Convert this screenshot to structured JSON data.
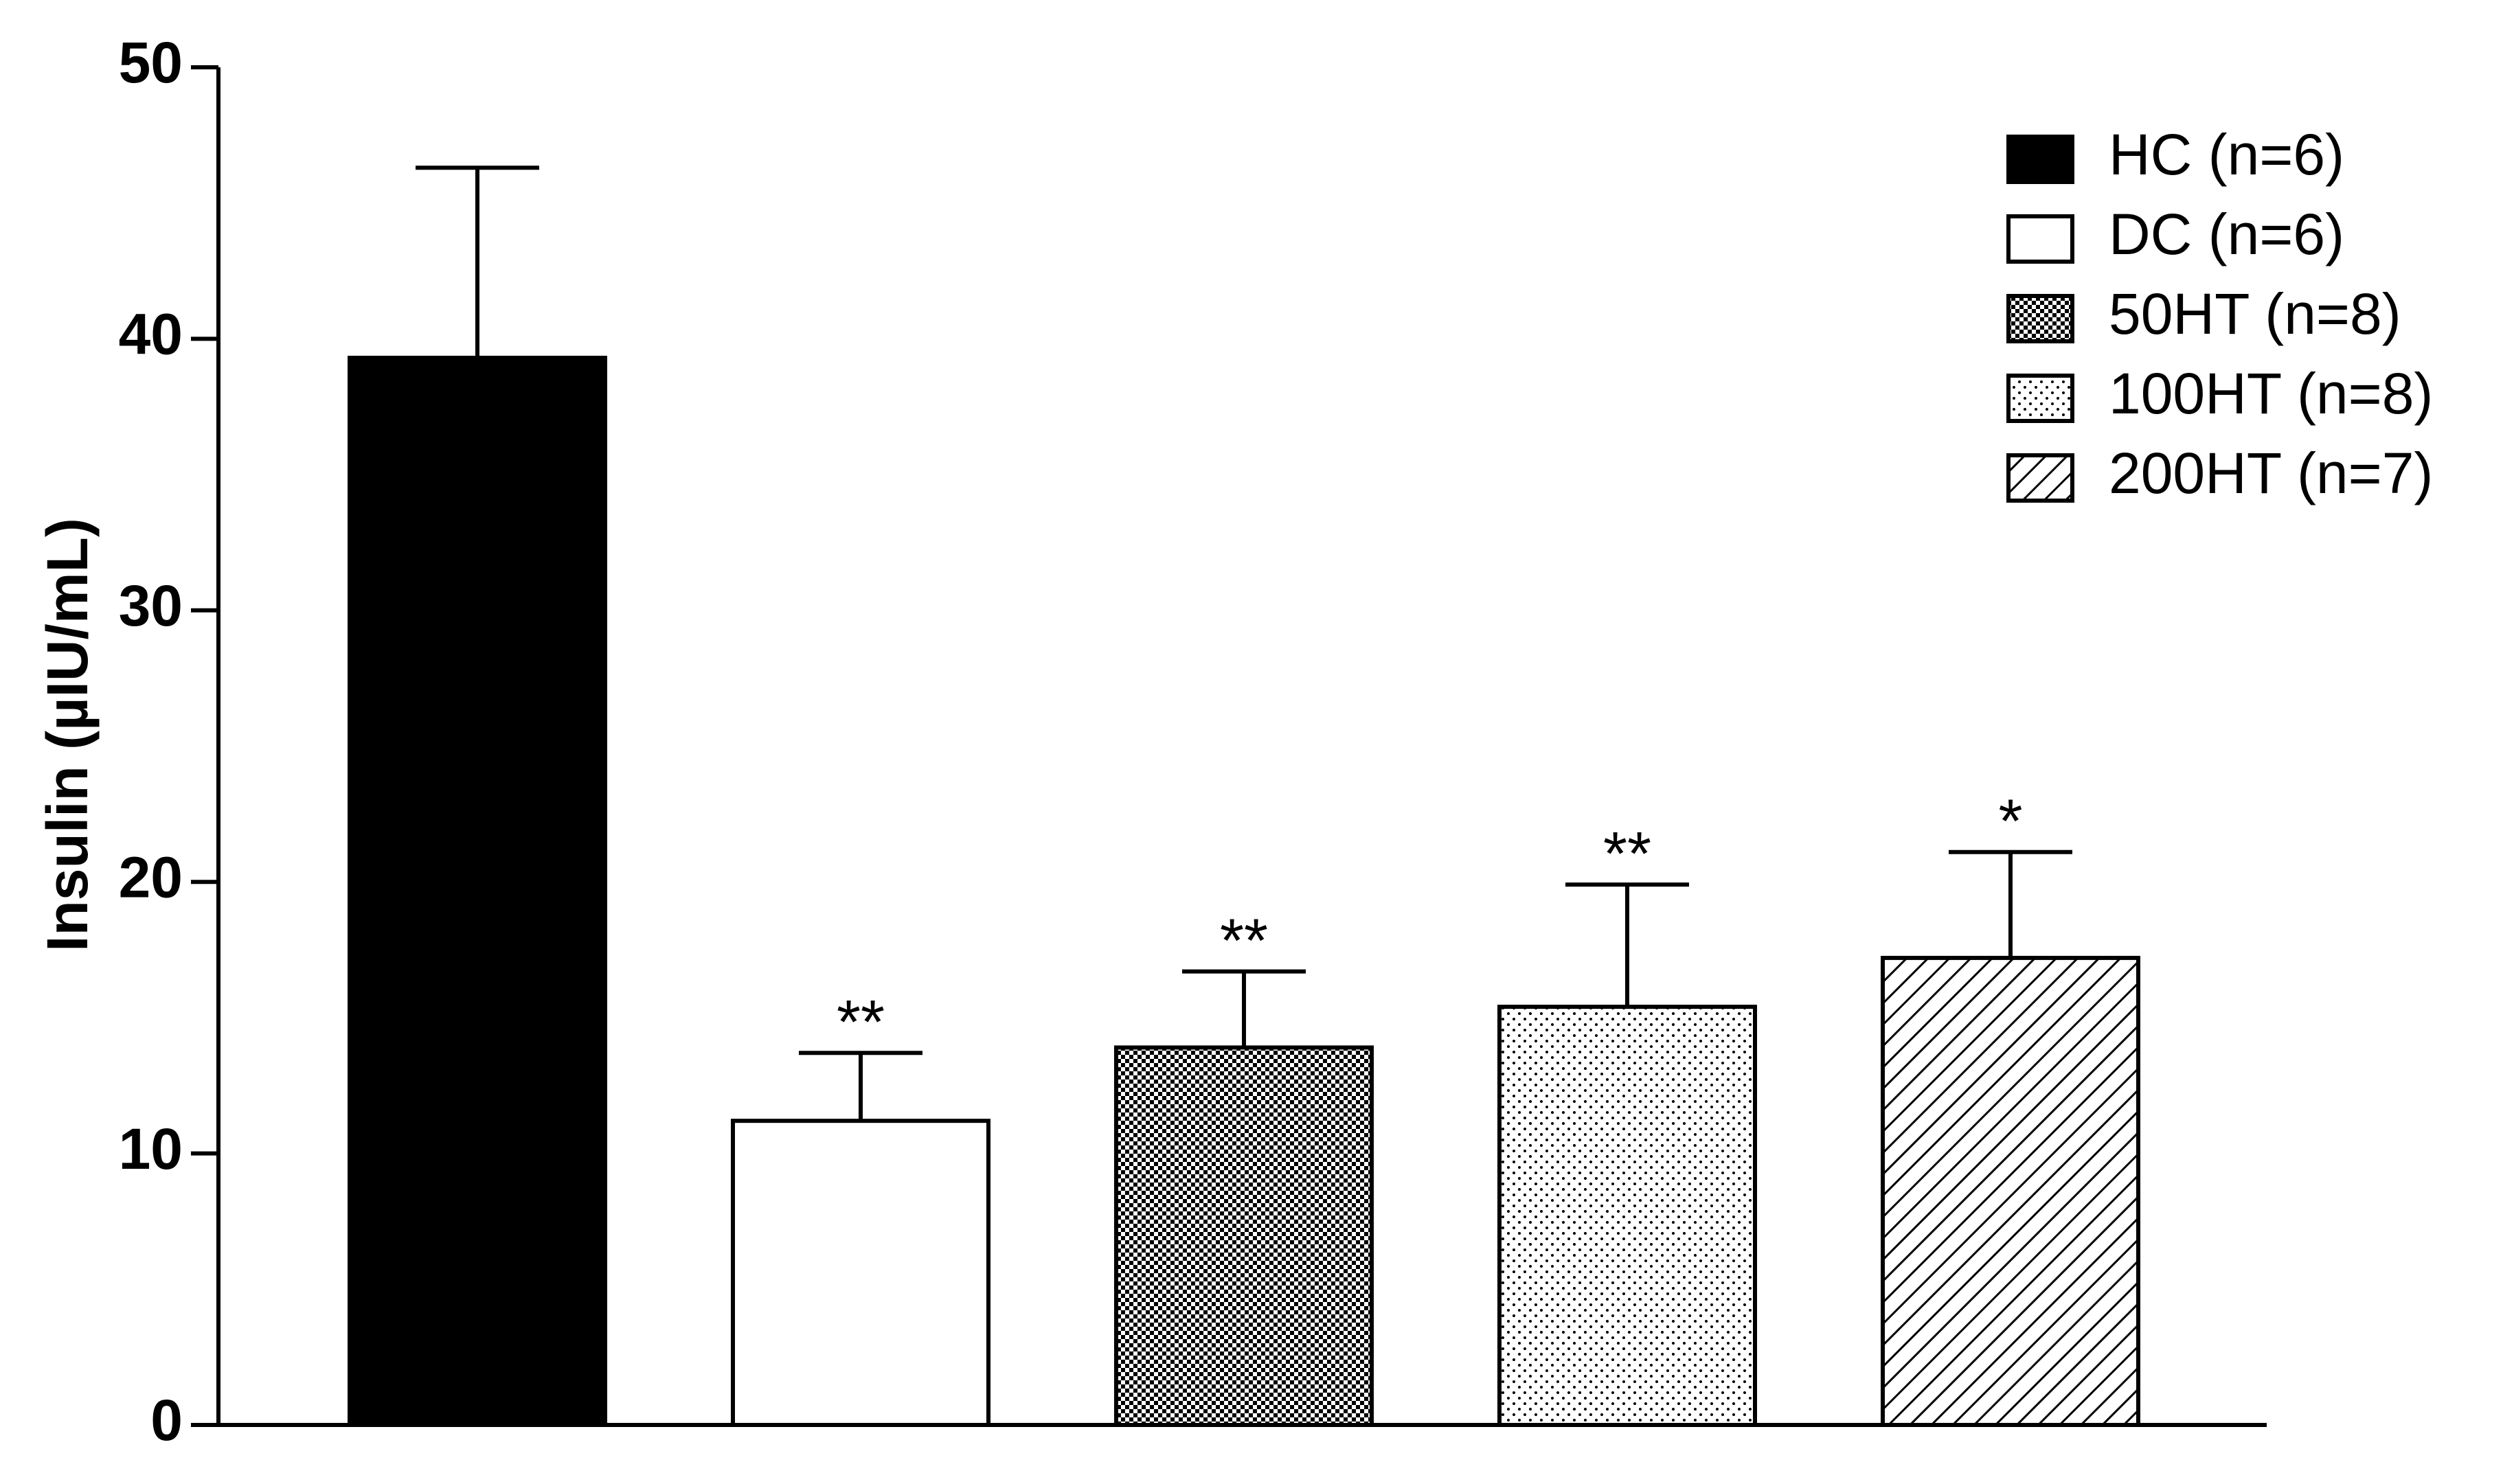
{
  "chart_data": {
    "type": "bar",
    "ylabel": "Insulin (µIU/mL)",
    "categories": [
      null
    ],
    "series": [
      {
        "name": "HC (n=6)",
        "color": "#000000",
        "values": [
          39.3
        ],
        "errors": [
          7.0
        ]
      },
      {
        "name": "DC (n=6)",
        "color": "#ffffff",
        "values": [
          11.2
        ],
        "errors": [
          2.5
        ],
        "annotations": [
          "**"
        ]
      },
      {
        "name": "50HT (n=8)",
        "color": "#ffffff",
        "pattern": "checker",
        "values": [
          13.9
        ],
        "errors": [
          2.8
        ],
        "annotations": [
          "**"
        ]
      },
      {
        "name": "100HT (n=8)",
        "color": "#ffffff",
        "pattern": "dots",
        "values": [
          15.4
        ],
        "errors": [
          4.5
        ],
        "annotations": [
          "**"
        ]
      },
      {
        "name": "200HT (n=7)",
        "color": "#ffffff",
        "pattern": "hatch",
        "values": [
          17.2
        ],
        "errors": [
          3.9
        ],
        "annotations": [
          "*"
        ]
      }
    ],
    "ylim": [
      0,
      50
    ],
    "yticks": [
      0,
      10,
      20,
      30,
      40,
      50
    ],
    "grid": false,
    "legend": "upper right"
  }
}
